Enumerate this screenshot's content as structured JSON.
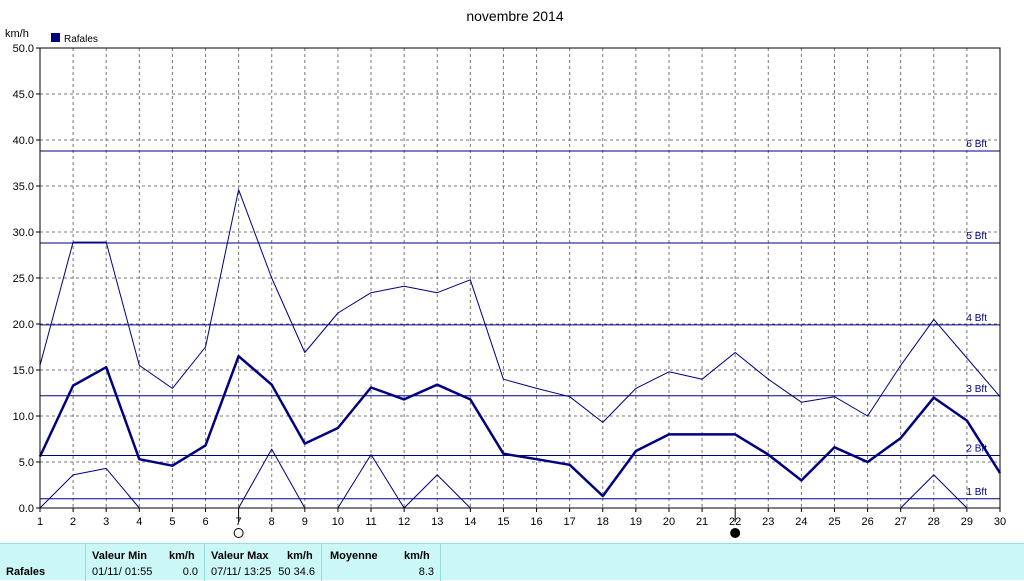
{
  "chart_data": {
    "type": "line",
    "title": "novembre 2014",
    "ylabel": "km/h",
    "ylim": [
      0,
      50
    ],
    "y_ticks": [
      "0.0",
      "5.0",
      "10.0",
      "15.0",
      "20.0",
      "25.0",
      "30.0",
      "35.0",
      "40.0",
      "45.0",
      "50.0"
    ],
    "x": [
      1,
      2,
      3,
      4,
      5,
      6,
      7,
      8,
      9,
      10,
      11,
      12,
      13,
      14,
      15,
      16,
      17,
      18,
      19,
      20,
      21,
      22,
      23,
      24,
      25,
      26,
      27,
      28,
      29,
      30
    ],
    "xlim": [
      1,
      30
    ],
    "grid": true,
    "legend": {
      "position": "top-left",
      "entries": [
        {
          "label": "Rafales",
          "color": "#000080"
        }
      ]
    },
    "series": [
      {
        "name": "Rafales",
        "role": "average",
        "color": "#000080",
        "stroke": "bold",
        "values": [
          5.6,
          13.3,
          15.3,
          5.3,
          4.6,
          6.8,
          16.5,
          13.4,
          7.0,
          8.7,
          13.1,
          11.8,
          13.4,
          11.8,
          5.9,
          5.3,
          4.7,
          1.3,
          6.2,
          8.0,
          8.0,
          8.0,
          5.8,
          3.0,
          6.6,
          5.0,
          7.6,
          12.0,
          9.5,
          3.8
        ]
      },
      {
        "role": "max",
        "color": "#000080",
        "stroke": "thin",
        "values": [
          15.5,
          28.9,
          28.9,
          15.5,
          13.0,
          17.5,
          34.6,
          25.0,
          16.9,
          21.2,
          23.4,
          24.1,
          23.4,
          24.8,
          14.0,
          13.0,
          12.1,
          9.3,
          13.0,
          14.8,
          14.0,
          16.9,
          14.0,
          11.5,
          12.1,
          10.0,
          15.5,
          20.5,
          16.3,
          12.1
        ]
      },
      {
        "role": "min",
        "color": "#000080",
        "stroke": "thin",
        "values": [
          0.0,
          3.6,
          4.3,
          0.0,
          0.0,
          0.0,
          0.0,
          6.4,
          0.0,
          0.0,
          5.8,
          0.0,
          3.6,
          0.0,
          null,
          null,
          null,
          null,
          null,
          null,
          null,
          null,
          null,
          null,
          null,
          null,
          0.0,
          3.6,
          0.0,
          null
        ]
      }
    ],
    "beaufort_lines": [
      {
        "label": "1 Bft",
        "value": 1.0
      },
      {
        "label": "2 Bft",
        "value": 5.7
      },
      {
        "label": "3 Bft",
        "value": 12.2
      },
      {
        "label": "4 Bft",
        "value": 19.9
      },
      {
        "label": "5 Bft",
        "value": 28.8
      },
      {
        "label": "6 Bft",
        "value": 38.8
      }
    ],
    "moon_phases": [
      {
        "day": 7,
        "phase": "full"
      },
      {
        "day": 22,
        "phase": "new"
      }
    ]
  },
  "stats": {
    "row_label": "Rafales",
    "min": {
      "label": "Valeur Min",
      "unit": "km/h",
      "datetime": "01/11/  01:55",
      "value": "0.0"
    },
    "max": {
      "label": "Valeur Max",
      "unit": "km/h",
      "datetime": "07/11/  13:25",
      "value": "50 34.6"
    },
    "avg": {
      "label": "Moyenne",
      "unit": "km/h",
      "value": "8.3"
    }
  }
}
